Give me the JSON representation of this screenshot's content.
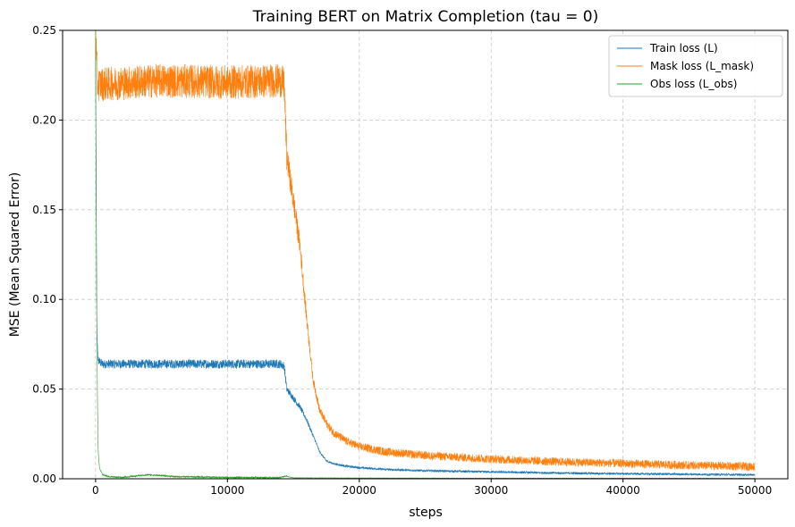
{
  "chart_data": {
    "type": "line",
    "title": "Training BERT on Matrix Completion (tau = 0)",
    "xlabel": "steps",
    "ylabel": "MSE (Mean Squared Error)",
    "xlim": [
      -2500,
      52500
    ],
    "ylim": [
      0.0,
      0.25
    ],
    "xticks": [
      0,
      10000,
      20000,
      30000,
      40000,
      50000
    ],
    "xtick_labels": [
      "0",
      "10000",
      "20000",
      "30000",
      "40000",
      "50000"
    ],
    "yticks": [
      0.0,
      0.05,
      0.1,
      0.15,
      0.2,
      0.25
    ],
    "ytick_labels": [
      "0.00",
      "0.05",
      "0.10",
      "0.15",
      "0.20",
      "0.25"
    ],
    "grid": true,
    "legend_position": "top-right",
    "series": [
      {
        "name": "Train loss (L)",
        "color": "#1f77b4",
        "noise": 0.0025,
        "x": [
          0,
          50,
          100,
          200,
          500,
          1000,
          5000,
          10000,
          14000,
          14300,
          14500,
          15000,
          15500,
          16000,
          16500,
          17000,
          17500,
          18000,
          19000,
          20000,
          22000,
          25000,
          30000,
          35000,
          40000,
          45000,
          50000
        ],
        "values": [
          0.24,
          0.16,
          0.08,
          0.066,
          0.064,
          0.064,
          0.064,
          0.064,
          0.064,
          0.063,
          0.05,
          0.045,
          0.04,
          0.033,
          0.024,
          0.015,
          0.01,
          0.0085,
          0.007,
          0.0062,
          0.0052,
          0.0045,
          0.0038,
          0.0032,
          0.0028,
          0.0025,
          0.0022
        ]
      },
      {
        "name": "Mask loss (L_mask)",
        "color": "#ff7f0e",
        "noise": 0.0095,
        "x": [
          0,
          50,
          150,
          500,
          5000,
          10000,
          14000,
          14300,
          14500,
          15000,
          15500,
          16000,
          16500,
          17000,
          17500,
          18000,
          19000,
          20000,
          22000,
          25000,
          30000,
          35000,
          40000,
          45000,
          50000
        ],
        "values": [
          0.25,
          0.24,
          0.22,
          0.22,
          0.222,
          0.221,
          0.222,
          0.22,
          0.18,
          0.155,
          0.13,
          0.09,
          0.055,
          0.038,
          0.031,
          0.026,
          0.021,
          0.018,
          0.015,
          0.013,
          0.011,
          0.0095,
          0.0085,
          0.0075,
          0.0068
        ]
      },
      {
        "name": "Obs loss (L_obs)",
        "color": "#2ca02c",
        "noise": 0.0004,
        "x": [
          0,
          30,
          60,
          100,
          150,
          200,
          300,
          500,
          1000,
          2000,
          3000,
          4000,
          5000,
          6000,
          8000,
          10000,
          14000,
          14400,
          15000,
          20000,
          30000,
          40000,
          50000
        ],
        "values": [
          0.25,
          0.18,
          0.13,
          0.08,
          0.04,
          0.015,
          0.006,
          0.0025,
          0.0012,
          0.0008,
          0.0015,
          0.0022,
          0.0018,
          0.0012,
          0.001,
          0.0008,
          0.0006,
          0.0015,
          0.0005,
          0.0004,
          0.0003,
          0.0003,
          0.0002
        ]
      }
    ]
  }
}
